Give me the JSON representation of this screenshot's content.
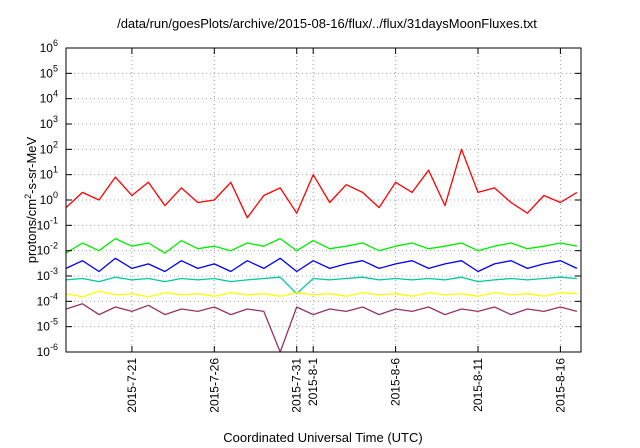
{
  "chart_data": {
    "type": "line",
    "title": "/data/run/goesPlots/archive/2015-08-16/flux/../flux/31daysMoonFluxes.txt",
    "xlabel": "Coordinated Universal Time (UTC)",
    "ylabel_main": "protons/cm",
    "ylabel_sup": "2",
    "ylabel_rest": "-s-sr-MeV",
    "yscale": "log",
    "ylim": [
      1e-06,
      1000000.0
    ],
    "xlim": [
      "2015-07-17",
      "2015-08-17T06:00"
    ],
    "grid": true,
    "x_ticks": [
      "2015-7-21",
      "2015-7-26",
      "2015-7-31",
      "2015-8-1",
      "2015-8-6",
      "2015-8-11",
      "2015-8-16"
    ],
    "x_tick_dates": [
      "2015-07-21",
      "2015-07-26",
      "2015-07-31",
      "2015-08-01",
      "2015-08-06",
      "2015-08-11",
      "2015-08-16"
    ],
    "y_ticks": [
      {
        "base": "10",
        "exp": "6",
        "value": 1000000.0
      },
      {
        "base": "10",
        "exp": "5",
        "value": 100000.0
      },
      {
        "base": "10",
        "exp": "4",
        "value": 10000.0
      },
      {
        "base": "10",
        "exp": "3",
        "value": 1000.0
      },
      {
        "base": "10",
        "exp": "2",
        "value": 100.0
      },
      {
        "base": "10",
        "exp": "1",
        "value": 10.0
      },
      {
        "base": "10",
        "exp": "0",
        "value": 1.0
      },
      {
        "base": "10",
        "exp": "-1",
        "value": 0.1
      },
      {
        "base": "10",
        "exp": "-2",
        "value": 0.01
      },
      {
        "base": "10",
        "exp": "-3",
        "value": 0.001
      },
      {
        "base": "10",
        "exp": "-4",
        "value": 0.0001
      },
      {
        "base": "10",
        "exp": "-5",
        "value": 1e-05
      },
      {
        "base": "10",
        "exp": "-6",
        "value": 1e-06
      }
    ],
    "series": [
      {
        "color": "#ff0000",
        "x": [
          "2015-07-17",
          "2015-07-18",
          "2015-07-19",
          "2015-07-20",
          "2015-07-21",
          "2015-07-22",
          "2015-07-23",
          "2015-07-24",
          "2015-07-25",
          "2015-07-26",
          "2015-07-27",
          "2015-07-28",
          "2015-07-29",
          "2015-07-30",
          "2015-07-31",
          "2015-08-01",
          "2015-08-02",
          "2015-08-03",
          "2015-08-04",
          "2015-08-05",
          "2015-08-06",
          "2015-08-07",
          "2015-08-08",
          "2015-08-09",
          "2015-08-10",
          "2015-08-11",
          "2015-08-12",
          "2015-08-13",
          "2015-08-14",
          "2015-08-15",
          "2015-08-16",
          "2015-08-17"
        ],
        "y": [
          0.5,
          2,
          1,
          8,
          1.5,
          5,
          0.6,
          3,
          0.8,
          1,
          5,
          0.2,
          1.5,
          3,
          0.3,
          10,
          0.8,
          4,
          2,
          0.5,
          5,
          2,
          15,
          0.6,
          100,
          2,
          3,
          0.8,
          0.3,
          1.5,
          0.8,
          2
        ]
      },
      {
        "color": "#00ee00",
        "x": [
          "2015-07-17",
          "2015-07-18",
          "2015-07-19",
          "2015-07-20",
          "2015-07-21",
          "2015-07-22",
          "2015-07-23",
          "2015-07-24",
          "2015-07-25",
          "2015-07-26",
          "2015-07-27",
          "2015-07-28",
          "2015-07-29",
          "2015-07-30",
          "2015-07-31",
          "2015-08-01",
          "2015-08-02",
          "2015-08-03",
          "2015-08-04",
          "2015-08-05",
          "2015-08-06",
          "2015-08-07",
          "2015-08-08",
          "2015-08-09",
          "2015-08-10",
          "2015-08-11",
          "2015-08-12",
          "2015-08-13",
          "2015-08-14",
          "2015-08-15",
          "2015-08-16",
          "2015-08-17"
        ],
        "y": [
          0.008,
          0.02,
          0.01,
          0.03,
          0.015,
          0.02,
          0.008,
          0.025,
          0.012,
          0.015,
          0.01,
          0.02,
          0.015,
          0.03,
          0.01,
          0.025,
          0.012,
          0.015,
          0.02,
          0.01,
          0.015,
          0.02,
          0.012,
          0.015,
          0.02,
          0.01,
          0.015,
          0.02,
          0.012,
          0.015,
          0.02,
          0.015
        ]
      },
      {
        "color": "#0000ff",
        "x": [
          "2015-07-17",
          "2015-07-18",
          "2015-07-19",
          "2015-07-20",
          "2015-07-21",
          "2015-07-22",
          "2015-07-23",
          "2015-07-24",
          "2015-07-25",
          "2015-07-26",
          "2015-07-27",
          "2015-07-28",
          "2015-07-29",
          "2015-07-30",
          "2015-07-31",
          "2015-08-01",
          "2015-08-02",
          "2015-08-03",
          "2015-08-04",
          "2015-08-05",
          "2015-08-06",
          "2015-08-07",
          "2015-08-08",
          "2015-08-09",
          "2015-08-10",
          "2015-08-11",
          "2015-08-12",
          "2015-08-13",
          "2015-08-14",
          "2015-08-15",
          "2015-08-16",
          "2015-08-17"
        ],
        "y": [
          0.002,
          0.004,
          0.0015,
          0.005,
          0.002,
          0.003,
          0.0015,
          0.004,
          0.002,
          0.003,
          0.0015,
          0.004,
          0.002,
          0.005,
          0.0015,
          0.004,
          0.002,
          0.003,
          0.004,
          0.002,
          0.003,
          0.004,
          0.002,
          0.003,
          0.004,
          0.0015,
          0.003,
          0.004,
          0.002,
          0.003,
          0.004,
          0.002
        ]
      },
      {
        "color": "#00c8a0",
        "x": [
          "2015-07-17",
          "2015-07-18",
          "2015-07-19",
          "2015-07-20",
          "2015-07-21",
          "2015-07-22",
          "2015-07-23",
          "2015-07-24",
          "2015-07-25",
          "2015-07-26",
          "2015-07-27",
          "2015-07-28",
          "2015-07-29",
          "2015-07-30",
          "2015-07-31",
          "2015-08-01",
          "2015-08-02",
          "2015-08-03",
          "2015-08-04",
          "2015-08-05",
          "2015-08-06",
          "2015-08-07",
          "2015-08-08",
          "2015-08-09",
          "2015-08-10",
          "2015-08-11",
          "2015-08-12",
          "2015-08-13",
          "2015-08-14",
          "2015-08-15",
          "2015-08-16",
          "2015-08-17"
        ],
        "y": [
          0.0007,
          0.0008,
          0.0006,
          0.0009,
          0.0007,
          0.0008,
          0.0006,
          0.0008,
          0.0007,
          0.0008,
          0.0006,
          0.0007,
          0.0008,
          0.0009,
          0.0002,
          0.0008,
          0.0007,
          0.0008,
          0.0009,
          0.0007,
          0.0008,
          0.0007,
          0.0008,
          0.0007,
          0.0009,
          0.0006,
          0.0007,
          0.0008,
          0.0007,
          0.0008,
          0.0009,
          0.0008
        ]
      },
      {
        "color": "#ffff00",
        "x": [
          "2015-07-17",
          "2015-07-18",
          "2015-07-19",
          "2015-07-20",
          "2015-07-21",
          "2015-07-22",
          "2015-07-23",
          "2015-07-24",
          "2015-07-25",
          "2015-07-26",
          "2015-07-27",
          "2015-07-28",
          "2015-07-29",
          "2015-07-30",
          "2015-07-31",
          "2015-08-01",
          "2015-08-02",
          "2015-08-03",
          "2015-08-04",
          "2015-08-05",
          "2015-08-06",
          "2015-08-07",
          "2015-08-08",
          "2015-08-09",
          "2015-08-10",
          "2015-08-11",
          "2015-08-12",
          "2015-08-13",
          "2015-08-14",
          "2015-08-15",
          "2015-08-16",
          "2015-08-17"
        ],
        "y": [
          0.0002,
          0.00015,
          0.00025,
          0.00018,
          0.0002,
          0.00015,
          0.00022,
          0.00018,
          0.0002,
          0.00016,
          0.00022,
          0.00018,
          0.0002,
          0.00016,
          0.00022,
          0.00018,
          0.0002,
          0.00016,
          0.00022,
          0.00018,
          0.0002,
          0.00016,
          0.00022,
          0.00018,
          0.0002,
          0.00016,
          0.00022,
          0.00018,
          0.0002,
          0.00016,
          0.00022,
          0.0002
        ]
      },
      {
        "color": "#993366",
        "x": [
          "2015-07-17",
          "2015-07-18",
          "2015-07-19",
          "2015-07-20",
          "2015-07-21",
          "2015-07-22",
          "2015-07-23",
          "2015-07-24",
          "2015-07-25",
          "2015-07-26",
          "2015-07-27",
          "2015-07-28",
          "2015-07-29",
          "2015-07-30",
          "2015-07-31",
          "2015-08-01",
          "2015-08-02",
          "2015-08-03",
          "2015-08-04",
          "2015-08-05",
          "2015-08-06",
          "2015-08-07",
          "2015-08-08",
          "2015-08-09",
          "2015-08-10",
          "2015-08-11",
          "2015-08-12",
          "2015-08-13",
          "2015-08-14",
          "2015-08-15",
          "2015-08-16",
          "2015-08-17"
        ],
        "y": [
          5e-05,
          8e-05,
          3e-05,
          6e-05,
          4e-05,
          7e-05,
          3e-05,
          5e-05,
          4e-05,
          6e-05,
          3e-05,
          5e-05,
          4e-05,
          1e-06,
          6e-05,
          3e-05,
          5e-05,
          4e-05,
          6e-05,
          3e-05,
          5e-05,
          4e-05,
          6e-05,
          3e-05,
          5e-05,
          4e-05,
          6e-05,
          3e-05,
          5e-05,
          4e-05,
          6e-05,
          4e-05
        ]
      }
    ]
  }
}
